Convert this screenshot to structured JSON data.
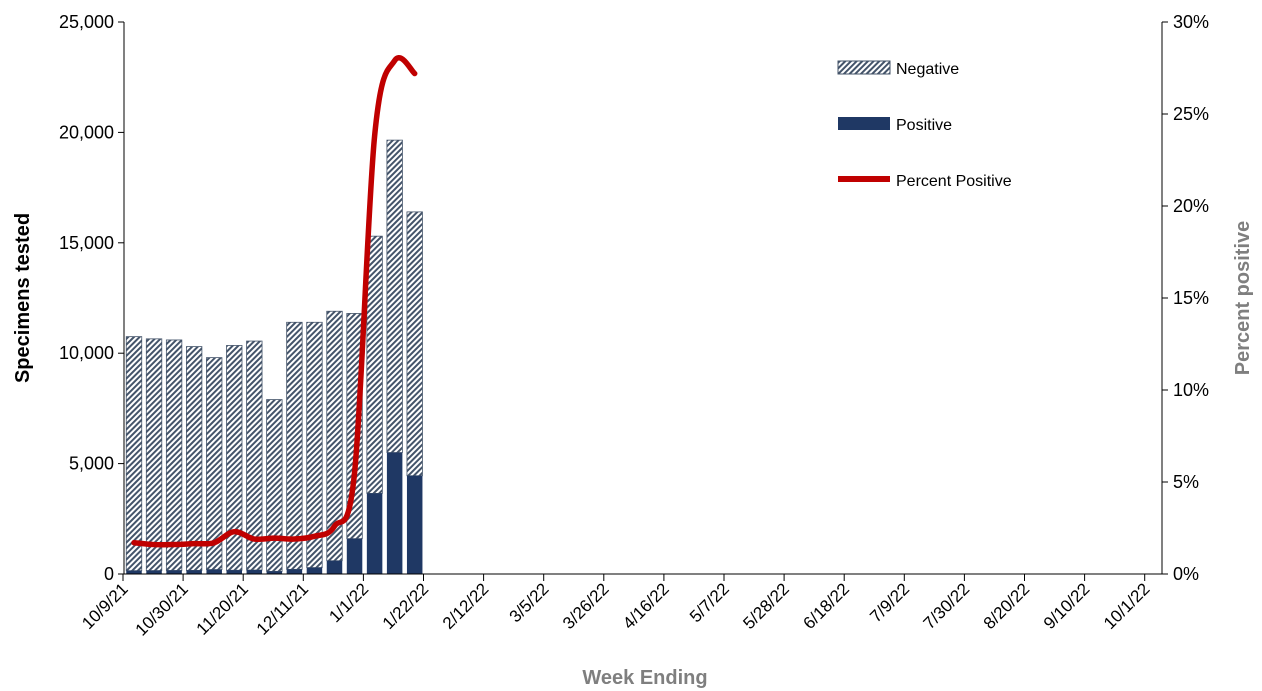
{
  "chart_data": {
    "type": "bar",
    "subtype": "stacked bar with line on secondary axis",
    "title": "",
    "xlabel": "Week Ending",
    "ylabel": "Specimens tested",
    "y2label": "Percent positive",
    "ylim": [
      0,
      25000
    ],
    "y2lim": [
      0,
      30
    ],
    "yticks": [
      "0",
      "5,000",
      "10,000",
      "15,000",
      "20,000",
      "25,000"
    ],
    "y2ticks": [
      "0%",
      "5%",
      "10%",
      "15%",
      "20%",
      "25%",
      "30%"
    ],
    "x_tick_labels": [
      "10/9/21",
      "10/30/21",
      "11/20/21",
      "12/11/21",
      "1/1/22",
      "1/22/22",
      "2/12/22",
      "3/5/22",
      "3/26/22",
      "4/16/22",
      "5/7/22",
      "5/28/22",
      "6/18/22",
      "7/9/22",
      "7/30/22",
      "8/20/22",
      "9/10/22",
      "10/1/22"
    ],
    "weeks": [
      "10/9/21",
      "10/16/21",
      "10/23/21",
      "10/30/21",
      "11/6/21",
      "11/13/21",
      "11/20/21",
      "11/27/21",
      "12/4/21",
      "12/11/21",
      "12/18/21",
      "12/25/21",
      "1/1/22",
      "1/8/22",
      "1/15/22"
    ],
    "series": [
      {
        "name": "Positive",
        "values": [
          150,
          155,
          160,
          165,
          200,
          170,
          180,
          120,
          210,
          290,
          600,
          1600,
          3650,
          5500,
          4450
        ]
      },
      {
        "name": "Negative",
        "values": [
          10600,
          10495,
          10440,
          10135,
          9600,
          10180,
          10370,
          7780,
          11190,
          11110,
          11300,
          10200,
          11650,
          14150,
          11950
        ]
      },
      {
        "name": "Percent Positive",
        "axis": "secondary",
        "values": [
          1.7,
          1.6,
          1.6,
          1.65,
          1.7,
          2.3,
          1.9,
          1.95,
          1.9,
          2.05,
          2.6,
          5.5,
          23.8,
          27.9,
          27.2
        ]
      }
    ],
    "legend": {
      "position": "top-right",
      "entries": [
        "Negative",
        "Positive",
        "Percent Positive"
      ]
    },
    "colors": {
      "positive": "#1f3864",
      "negative_hatch": "#44546a",
      "percent_line": "#c00000",
      "axis_title_secondary": "#7f7f7f"
    },
    "grid": false
  }
}
